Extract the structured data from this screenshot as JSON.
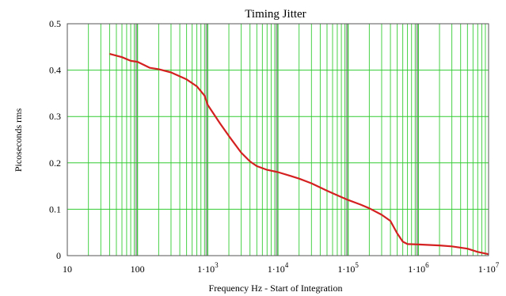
{
  "chart_data": {
    "type": "line",
    "title": "Timing Jitter",
    "xlabel": "Frequency Hz - Start of Integration",
    "ylabel": "Picoseconds rms",
    "x_scale": "log",
    "xlim": [
      10,
      10000000
    ],
    "ylim": [
      0,
      0.5
    ],
    "grid": true,
    "legend": "none",
    "x_ticks": [
      {
        "value": 10,
        "label": "10",
        "exp": ""
      },
      {
        "value": 100,
        "label": "100",
        "exp": ""
      },
      {
        "value": 1000,
        "label": "1·10",
        "exp": "3"
      },
      {
        "value": 10000,
        "label": "1·10",
        "exp": "4"
      },
      {
        "value": 100000,
        "label": "1·10",
        "exp": "5"
      },
      {
        "value": 1000000,
        "label": "1·10",
        "exp": "6"
      },
      {
        "value": 10000000,
        "label": "1·10",
        "exp": "7"
      }
    ],
    "y_ticks": [
      {
        "value": 0,
        "label": "0"
      },
      {
        "value": 0.1,
        "label": "0.1"
      },
      {
        "value": 0.2,
        "label": "0.2"
      },
      {
        "value": 0.3,
        "label": "0.3"
      },
      {
        "value": 0.4,
        "label": "0.4"
      },
      {
        "value": 0.5,
        "label": "0.5"
      }
    ],
    "series": [
      {
        "color": "#d42020",
        "x": [
          40,
          60,
          80,
          100,
          150,
          200,
          300,
          500,
          700,
          900,
          1000,
          1500,
          2000,
          3000,
          4000,
          5000,
          7000,
          10000,
          15000,
          20000,
          30000,
          50000,
          70000,
          100000,
          150000,
          200000,
          300000,
          400000,
          500000,
          600000,
          700000,
          1000000,
          2000000,
          3000000,
          5000000,
          7000000,
          10000000
        ],
        "y": [
          0.435,
          0.428,
          0.42,
          0.418,
          0.405,
          0.402,
          0.395,
          0.38,
          0.365,
          0.345,
          0.325,
          0.285,
          0.258,
          0.222,
          0.203,
          0.193,
          0.185,
          0.18,
          0.172,
          0.166,
          0.156,
          0.14,
          0.13,
          0.12,
          0.11,
          0.102,
          0.088,
          0.075,
          0.048,
          0.03,
          0.025,
          0.024,
          0.022,
          0.02,
          0.015,
          0.008,
          0.003
        ]
      }
    ]
  },
  "colors": {
    "grid": "#33cc33",
    "decade_band": "#9a9a9a",
    "frame": "#555555",
    "background": "#ffffff"
  }
}
